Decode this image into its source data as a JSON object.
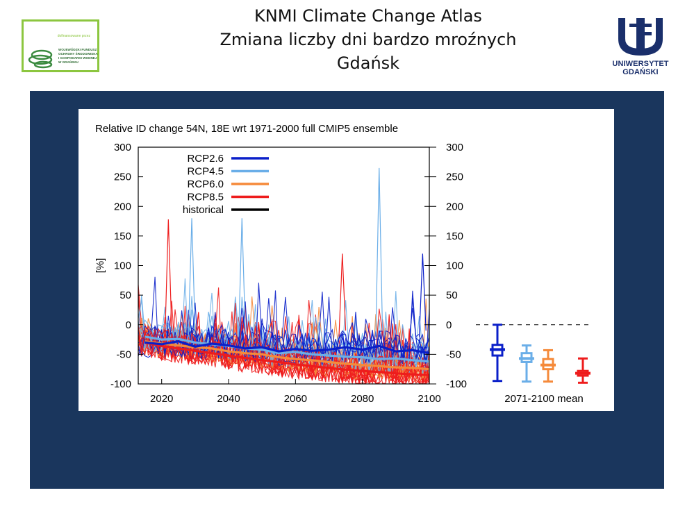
{
  "header": {
    "title_line1": "KNMI Climate Change Atlas",
    "title_line2": "Zmiana liczby dni bardzo mroźnych",
    "title_line3": "Gdańsk"
  },
  "logo_left": {
    "funded_text": "dofinansowane przez",
    "fund_lines": [
      "WOJEWÓDZKI FUNDUSZ",
      "OCHRONY ŚRODOWISKA",
      "I GOSPODARKI WODNEJ",
      "W GDAŃSKU"
    ]
  },
  "logo_right": {
    "name": "UNIWERSYTET GDAŃSKI",
    "color": "#1a2f6b"
  },
  "colors": {
    "panel": "#1a365d",
    "rcp26": "#0a1fc9",
    "rcp45": "#6aaee8",
    "rcp60": "#f58a3a",
    "rcp85": "#ee1c1c",
    "historical": "#000000"
  },
  "chart_data": {
    "type": "line",
    "title": "Relative ID change 54N, 18E wrt 1971-2000 full CMIP5 ensemble",
    "ylabel": "[%]",
    "xlabel": "",
    "xlim": [
      2013,
      2100
    ],
    "ylim": [
      -100,
      300
    ],
    "x_ticks": [
      2020,
      2040,
      2060,
      2080,
      2100
    ],
    "y_ticks": [
      -100,
      -50,
      0,
      50,
      100,
      150,
      200,
      250,
      300
    ],
    "zero_line_label": "",
    "legend": [
      {
        "name": "RCP2.6",
        "color": "#0a1fc9"
      },
      {
        "name": "RCP4.5",
        "color": "#6aaee8"
      },
      {
        "name": "RCP6.0",
        "color": "#f58a3a"
      },
      {
        "name": "RCP8.5",
        "color": "#ee1c1c"
      },
      {
        "name": "historical",
        "color": "#000000"
      }
    ],
    "mean_series": [
      {
        "name": "RCP2.6",
        "color": "#0a1fc9",
        "x": [
          2015,
          2020,
          2025,
          2030,
          2035,
          2040,
          2045,
          2050,
          2055,
          2060,
          2065,
          2070,
          2075,
          2080,
          2085,
          2090,
          2095,
          2100
        ],
        "y": [
          -30,
          -33,
          -28,
          -37,
          -32,
          -35,
          -40,
          -38,
          -45,
          -41,
          -44,
          -42,
          -38,
          -42,
          -36,
          -45,
          -43,
          -48
        ]
      },
      {
        "name": "RCP4.5",
        "color": "#6aaee8",
        "x": [
          2015,
          2020,
          2025,
          2030,
          2035,
          2040,
          2045,
          2050,
          2055,
          2060,
          2065,
          2070,
          2075,
          2080,
          2085,
          2090,
          2095,
          2100
        ],
        "y": [
          -20,
          -25,
          -24,
          -30,
          -33,
          -36,
          -40,
          -42,
          -48,
          -46,
          -50,
          -52,
          -54,
          -55,
          -58,
          -57,
          -60,
          -62
        ]
      },
      {
        "name": "RCP6.0",
        "color": "#f58a3a",
        "x": [
          2015,
          2020,
          2025,
          2030,
          2035,
          2040,
          2045,
          2050,
          2055,
          2060,
          2065,
          2070,
          2075,
          2080,
          2085,
          2090,
          2095,
          2100
        ],
        "y": [
          -28,
          -32,
          -35,
          -38,
          -40,
          -45,
          -48,
          -50,
          -55,
          -58,
          -60,
          -63,
          -66,
          -68,
          -70,
          -72,
          -73,
          -75
        ]
      },
      {
        "name": "RCP8.5",
        "color": "#ee1c1c",
        "x": [
          2015,
          2020,
          2025,
          2030,
          2035,
          2040,
          2045,
          2050,
          2055,
          2060,
          2065,
          2070,
          2075,
          2080,
          2085,
          2090,
          2095,
          2100
        ],
        "y": [
          -30,
          -36,
          -40,
          -44,
          -48,
          -52,
          -56,
          -60,
          -63,
          -67,
          -70,
          -73,
          -76,
          -78,
          -80,
          -82,
          -84,
          -85
        ]
      }
    ],
    "period_summary": {
      "label": "2071-2100 mean",
      "entries": [
        {
          "name": "RCP2.6",
          "color": "#0a1fc9",
          "mean": -42,
          "q_low": -52,
          "q_high": -34,
          "min": -95,
          "max": 0
        },
        {
          "name": "RCP4.5",
          "color": "#6aaee8",
          "mean": -57,
          "q_low": -63,
          "q_high": -48,
          "min": -96,
          "max": -35
        },
        {
          "name": "RCP6.0",
          "color": "#f58a3a",
          "mean": -68,
          "q_low": -75,
          "q_high": -58,
          "min": -96,
          "max": -43
        },
        {
          "name": "RCP8.5",
          "color": "#ee1c1c",
          "mean": -82,
          "q_low": -86,
          "q_high": -78,
          "min": -98,
          "max": -57
        }
      ]
    },
    "peaks": [
      {
        "series": "RCP4.5",
        "x": 2085,
        "y": 265
      },
      {
        "series": "RCP4.5",
        "x": 2029,
        "y": 180
      },
      {
        "series": "RCP4.5",
        "x": 2044,
        "y": 180
      },
      {
        "series": "RCP8.5",
        "x": 2022,
        "y": 178
      },
      {
        "series": "RCP8.5",
        "x": 2074,
        "y": 120
      },
      {
        "series": "RCP2.6",
        "x": 2098,
        "y": 120
      }
    ]
  }
}
